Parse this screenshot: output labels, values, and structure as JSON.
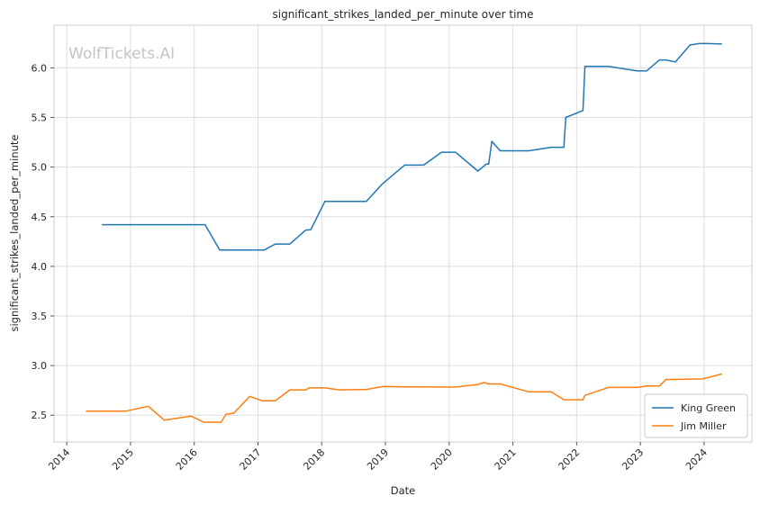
{
  "chart_data": {
    "type": "line",
    "title": "significant_strikes_landed_per_minute over time",
    "xlabel": "Date",
    "ylabel": "significant_strikes_landed_per_minute",
    "watermark": "WolfTickets.AI",
    "x_ticks": [
      "2014",
      "2015",
      "2016",
      "2017",
      "2018",
      "2019",
      "2020",
      "2021",
      "2022",
      "2023",
      "2024"
    ],
    "y_ticks": [
      "2.5",
      "3.0",
      "3.5",
      "4.0",
      "4.5",
      "5.0",
      "5.5",
      "6.0"
    ],
    "xlim": [
      2013.8,
      2024.75
    ],
    "ylim": [
      2.23,
      6.43
    ],
    "grid": true,
    "legend_position": "lower-right",
    "series": [
      {
        "name": "King Green",
        "color": "#1f77b4",
        "points": [
          [
            2014.55,
            4.42
          ],
          [
            2016.17,
            4.42
          ],
          [
            2016.4,
            4.165
          ],
          [
            2017.1,
            4.165
          ],
          [
            2017.27,
            4.225
          ],
          [
            2017.5,
            4.225
          ],
          [
            2017.75,
            4.365
          ],
          [
            2017.83,
            4.37
          ],
          [
            2018.05,
            4.655
          ],
          [
            2018.7,
            4.655
          ],
          [
            2018.95,
            4.83
          ],
          [
            2019.3,
            5.02
          ],
          [
            2019.6,
            5.02
          ],
          [
            2019.88,
            5.15
          ],
          [
            2020.1,
            5.15
          ],
          [
            2020.45,
            4.96
          ],
          [
            2020.58,
            5.03
          ],
          [
            2020.62,
            5.03
          ],
          [
            2020.67,
            5.26
          ],
          [
            2020.8,
            5.165
          ],
          [
            2021.25,
            5.165
          ],
          [
            2021.6,
            5.2
          ],
          [
            2021.8,
            5.2
          ],
          [
            2021.83,
            5.5
          ],
          [
            2022.1,
            5.57
          ],
          [
            2022.13,
            6.015
          ],
          [
            2022.5,
            6.015
          ],
          [
            2022.95,
            5.97
          ],
          [
            2023.1,
            5.97
          ],
          [
            2023.3,
            6.08
          ],
          [
            2023.4,
            6.08
          ],
          [
            2023.55,
            6.06
          ],
          [
            2023.78,
            6.23
          ],
          [
            2023.92,
            6.245
          ],
          [
            2024.05,
            6.245
          ],
          [
            2024.28,
            6.24
          ]
        ]
      },
      {
        "name": "Jim Miller",
        "color": "#ff7f0e",
        "points": [
          [
            2014.3,
            2.54
          ],
          [
            2014.92,
            2.54
          ],
          [
            2015.28,
            2.59
          ],
          [
            2015.53,
            2.45
          ],
          [
            2015.95,
            2.49
          ],
          [
            2016.15,
            2.43
          ],
          [
            2016.42,
            2.43
          ],
          [
            2016.5,
            2.51
          ],
          [
            2016.62,
            2.52
          ],
          [
            2016.87,
            2.69
          ],
          [
            2017.07,
            2.645
          ],
          [
            2017.27,
            2.645
          ],
          [
            2017.5,
            2.755
          ],
          [
            2017.75,
            2.755
          ],
          [
            2017.8,
            2.775
          ],
          [
            2018.05,
            2.775
          ],
          [
            2018.28,
            2.755
          ],
          [
            2018.7,
            2.76
          ],
          [
            2018.97,
            2.79
          ],
          [
            2019.3,
            2.785
          ],
          [
            2020.1,
            2.783
          ],
          [
            2020.45,
            2.81
          ],
          [
            2020.55,
            2.83
          ],
          [
            2020.62,
            2.815
          ],
          [
            2020.8,
            2.815
          ],
          [
            2021.25,
            2.735
          ],
          [
            2021.6,
            2.735
          ],
          [
            2021.8,
            2.655
          ],
          [
            2022.1,
            2.655
          ],
          [
            2022.13,
            2.7
          ],
          [
            2022.5,
            2.78
          ],
          [
            2022.95,
            2.78
          ],
          [
            2023.1,
            2.795
          ],
          [
            2023.3,
            2.795
          ],
          [
            2023.4,
            2.86
          ],
          [
            2023.97,
            2.865
          ],
          [
            2024.28,
            2.915
          ]
        ]
      }
    ]
  }
}
